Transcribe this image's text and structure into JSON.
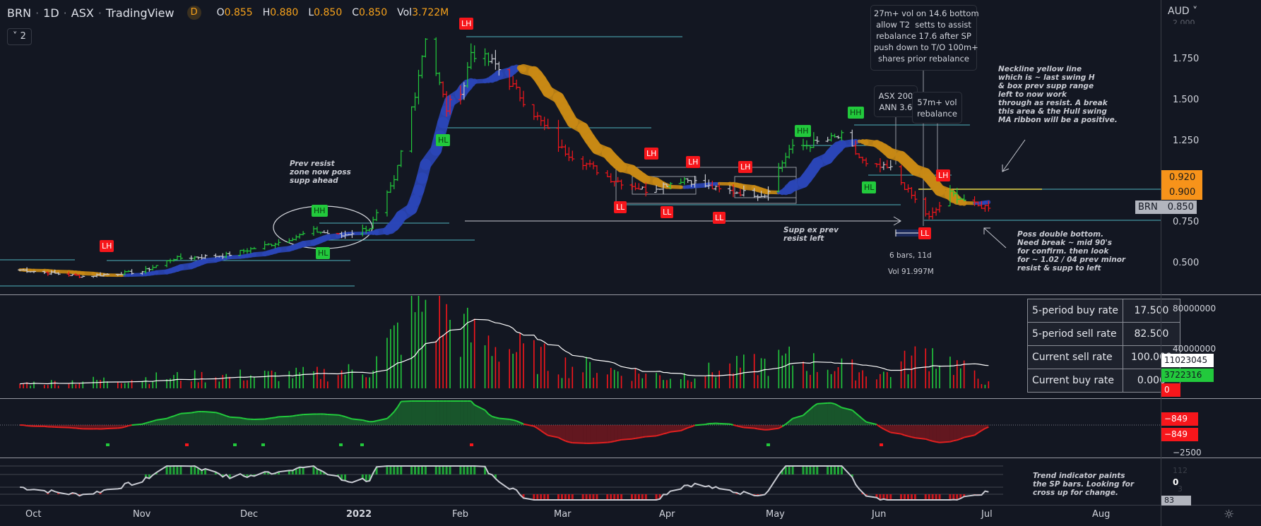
{
  "header": {
    "symbol": "BRN",
    "interval": "1D",
    "exchange": "ASX",
    "source": "TradingView",
    "badge": "D",
    "ohlc": {
      "o_label": "O",
      "o": "0.855",
      "h_label": "H",
      "h": "0.880",
      "l_label": "L",
      "l": "0.850",
      "c_label": "C",
      "c": "0.850",
      "vol_label": "Vol",
      "vol": "3.722M"
    },
    "collapse": "˅ 2"
  },
  "colors": {
    "background": "#131722",
    "up": "#22c93c",
    "down": "#f7161b",
    "neutral": "#c8cad2",
    "ribbon_up": "#2b46b8",
    "ribbon_down": "#c98a14",
    "level_line": "#4fb3bf",
    "neckline": "#e8d84a",
    "tag_orange": "#f7931a"
  },
  "price_axis": {
    "currency": "AUD",
    "labels": [
      "2.000",
      "1.750",
      "1.500",
      "1.250",
      "0.750",
      "0.500"
    ],
    "tags": {
      "upper": "0.920",
      "lower": "0.900",
      "symbol": "BRN",
      "last": "0.850"
    }
  },
  "volume_axis": {
    "labels": [
      "80000000",
      "40000000"
    ],
    "tags": [
      "11023045",
      "3722316",
      "0"
    ]
  },
  "osc_axis": {
    "tags": [
      "−849",
      "−849"
    ],
    "label": "−2500"
  },
  "trend_axis": {
    "labels": [
      "112",
      "0",
      "3"
    ],
    "tag": "83"
  },
  "time_axis": [
    "Oct",
    "Nov",
    "Dec",
    "2022",
    "Feb",
    "Mar",
    "Apr",
    "May",
    "Jun",
    "Jul",
    "Aug"
  ],
  "markers": {
    "lh": "LH",
    "hl": "HL",
    "ll": "LL",
    "hh": "HH"
  },
  "annotations": {
    "prev_resist": "Prev resist\nzone now poss\nsupp ahead",
    "supp_ex": "Supp ex prev\nresist left",
    "callout_vol": "27m+ vol on 14.6 bottom\nallow T2  setts to assist\nrebalance 17.6 after SP\npush down to T/O 100m+\nshares prior rebalance",
    "callout_asx": "ASX 200\nANN 3.6",
    "callout_57": "57m+ vol\nrebalance",
    "neckline": "Neckline yellow line\nwhich is ~ last swing H\n& box prev supp range\nleft to now work\nthrough as resist. A break\nthis area & the Hull swing\nMA ribbon will be a positive.",
    "double_bottom": "Poss double bottom.\nNeed break ~ mid 90's\nfor confirm. then look\nfor ~ 1.02 / 04 prev minor\nresist & supp to left",
    "range_bars": "6 bars, 11d",
    "range_vol": "Vol 91.997M",
    "trend_note": "Trend indicator paints\nthe SP bars. Looking for\ncross up for change."
  },
  "stats_table": [
    {
      "label": "5-period buy rate",
      "value": "17.500"
    },
    {
      "label": "5-period sell rate",
      "value": "82.500"
    },
    {
      "label": "Current sell rate",
      "value": "100.000"
    },
    {
      "label": "Current buy rate",
      "value": "0.000"
    }
  ],
  "chart_data": {
    "type": "ohlc",
    "price_keypoints": [
      [
        "2021-09-27",
        0.46
      ],
      [
        "2021-10-15",
        0.42
      ],
      [
        "2021-11-01",
        0.45
      ],
      [
        "2021-11-10",
        0.53
      ],
      [
        "2021-11-25",
        0.55
      ],
      [
        "2021-12-10",
        0.63
      ],
      [
        "2021-12-20",
        0.7
      ],
      [
        "2021-12-28",
        0.67
      ],
      [
        "2022-01-05",
        0.72
      ],
      [
        "2022-01-12",
        1.0
      ],
      [
        "2022-01-18",
        1.55
      ],
      [
        "2022-01-21",
        1.9
      ],
      [
        "2022-01-27",
        1.45
      ],
      [
        "2022-02-01",
        1.6
      ],
      [
        "2022-02-03",
        1.8
      ],
      [
        "2022-02-10",
        1.72
      ],
      [
        "2022-02-20",
        1.45
      ],
      [
        "2022-03-01",
        1.2
      ],
      [
        "2022-03-15",
        1.02
      ],
      [
        "2022-03-25",
        0.95
      ],
      [
        "2022-04-05",
        1.02
      ],
      [
        "2022-04-15",
        0.95
      ],
      [
        "2022-04-28",
        0.92
      ],
      [
        "2022-05-05",
        1.2
      ],
      [
        "2022-05-20",
        1.28
      ],
      [
        "2022-05-27",
        1.1
      ],
      [
        "2022-06-03",
        1.08
      ],
      [
        "2022-06-14",
        0.78
      ],
      [
        "2022-06-20",
        0.93
      ],
      [
        "2022-06-28",
        0.85
      ],
      [
        "2022-07-01",
        0.85
      ]
    ],
    "volume_keypoints_m": [
      [
        "2021-09-27",
        5
      ],
      [
        "2021-11-10",
        12
      ],
      [
        "2021-12-20",
        15
      ],
      [
        "2022-01-05",
        20
      ],
      [
        "2022-01-20",
        90
      ],
      [
        "2022-02-03",
        55
      ],
      [
        "2022-03-01",
        25
      ],
      [
        "2022-04-01",
        12
      ],
      [
        "2022-05-05",
        30
      ],
      [
        "2022-06-01",
        15
      ],
      [
        "2022-06-14",
        40
      ],
      [
        "2022-07-01",
        5
      ]
    ]
  }
}
